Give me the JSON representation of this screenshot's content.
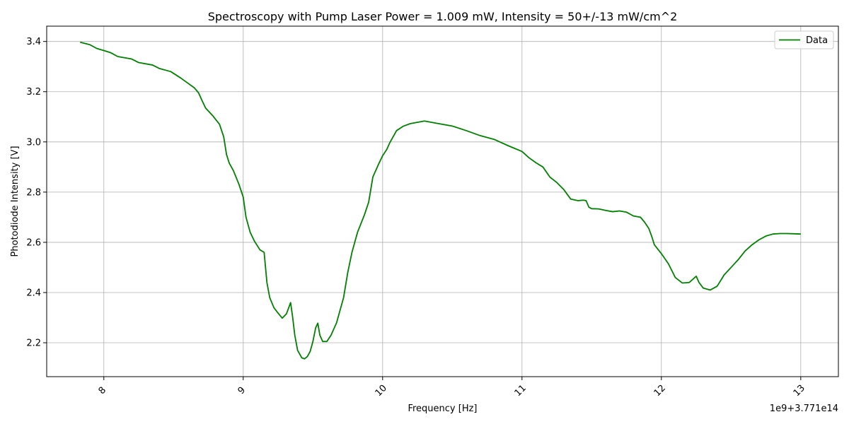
{
  "chart_data": {
    "type": "line",
    "title": "Spectroscopy with Pump Laser Power = 1.009 mW, Intensity = 50+/-13 mW/cm^2",
    "xlabel": "Frequency [Hz]",
    "ylabel": "Photodiode Intensity [V]",
    "offset_text": "1e9+3.771e14",
    "xlim": [
      7.59,
      13.27
    ],
    "ylim": [
      2.065,
      3.461
    ],
    "x_ticks": [
      8,
      9,
      10,
      11,
      12,
      13
    ],
    "x_tick_labels": [
      "8",
      "9",
      "10",
      "11",
      "12",
      "13"
    ],
    "y_ticks": [
      2.2,
      2.4,
      2.6,
      2.8,
      3.0,
      3.2,
      3.4
    ],
    "y_tick_labels": [
      "2.2",
      "2.4",
      "2.6",
      "2.8",
      "3.0",
      "3.2",
      "3.4"
    ],
    "x_tick_rotation": 45,
    "grid": true,
    "legend_position": "top-right",
    "series": [
      {
        "name": "Data",
        "color": "#008000",
        "x": [
          7.83,
          7.9,
          7.95,
          8.0,
          8.05,
          8.1,
          8.2,
          8.25,
          8.35,
          8.4,
          8.48,
          8.55,
          8.6,
          8.65,
          8.68,
          8.7,
          8.73,
          8.78,
          8.83,
          8.86,
          8.88,
          8.9,
          8.93,
          8.97,
          9.0,
          9.02,
          9.05,
          9.08,
          9.12,
          9.15,
          9.17,
          9.19,
          9.22,
          9.25,
          9.28,
          9.31,
          9.34,
          9.355,
          9.37,
          9.39,
          9.42,
          9.44,
          9.46,
          9.48,
          9.5,
          9.52,
          9.535,
          9.55,
          9.57,
          9.6,
          9.63,
          9.67,
          9.72,
          9.75,
          9.78,
          9.82,
          9.87,
          9.9,
          9.93,
          9.97,
          10.0,
          10.03,
          10.05,
          10.1,
          10.15,
          10.2,
          10.3,
          10.4,
          10.5,
          10.6,
          10.7,
          10.8,
          10.9,
          11.0,
          11.05,
          11.1,
          11.15,
          11.2,
          11.25,
          11.3,
          11.35,
          11.4,
          11.44,
          11.46,
          11.48,
          11.5,
          11.55,
          11.6,
          11.65,
          11.7,
          11.75,
          11.8,
          11.85,
          11.88,
          11.91,
          11.93,
          11.95,
          12.0,
          12.05,
          12.1,
          12.15,
          12.2,
          12.23,
          12.25,
          12.27,
          12.3,
          12.35,
          12.4,
          12.45,
          12.5,
          12.55,
          12.6,
          12.65,
          12.7,
          12.75,
          12.8,
          12.85,
          12.9,
          12.95,
          13.0
        ],
        "y": [
          3.397,
          3.387,
          3.372,
          3.364,
          3.355,
          3.34,
          3.33,
          3.316,
          3.306,
          3.292,
          3.28,
          3.255,
          3.235,
          3.215,
          3.195,
          3.17,
          3.135,
          3.105,
          3.07,
          3.02,
          2.95,
          2.915,
          2.885,
          2.83,
          2.78,
          2.7,
          2.64,
          2.605,
          2.57,
          2.56,
          2.44,
          2.38,
          2.34,
          2.318,
          2.298,
          2.315,
          2.36,
          2.3,
          2.23,
          2.17,
          2.14,
          2.136,
          2.145,
          2.165,
          2.205,
          2.26,
          2.278,
          2.23,
          2.205,
          2.205,
          2.23,
          2.28,
          2.38,
          2.48,
          2.56,
          2.64,
          2.71,
          2.76,
          2.86,
          2.91,
          2.945,
          2.97,
          2.995,
          3.045,
          3.063,
          3.073,
          3.083,
          3.073,
          3.063,
          3.045,
          3.025,
          3.01,
          2.985,
          2.962,
          2.937,
          2.917,
          2.9,
          2.86,
          2.838,
          2.81,
          2.772,
          2.766,
          2.768,
          2.766,
          2.74,
          2.734,
          2.733,
          2.727,
          2.722,
          2.725,
          2.72,
          2.705,
          2.7,
          2.68,
          2.655,
          2.625,
          2.59,
          2.555,
          2.515,
          2.46,
          2.438,
          2.44,
          2.455,
          2.465,
          2.44,
          2.418,
          2.41,
          2.425,
          2.47,
          2.5,
          2.53,
          2.565,
          2.59,
          2.61,
          2.625,
          2.633,
          2.635,
          2.635,
          2.634,
          2.633
        ]
      }
    ]
  }
}
